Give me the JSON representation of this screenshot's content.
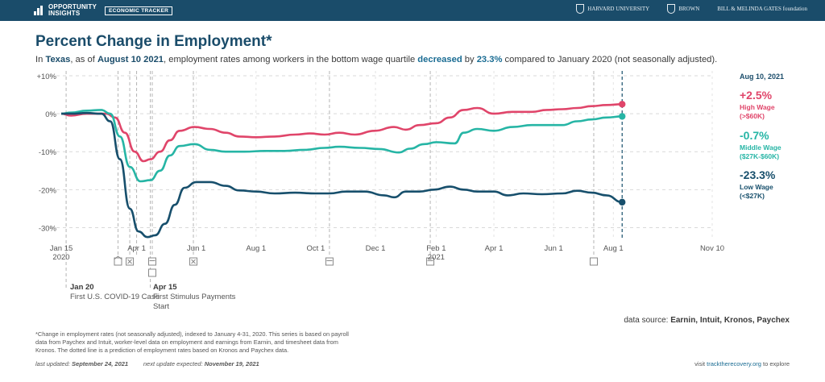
{
  "header": {
    "brand_name_1": "OPPORTUNITY",
    "brand_name_2": "INSIGHTS",
    "brand_tag": "ECONOMIC TRACKER",
    "partners": [
      "HARVARD UNIVERSITY",
      "BROWN",
      "BILL & MELINDA GATES foundation"
    ]
  },
  "title": "Percent Change in Employment*",
  "subtitle": {
    "p1": "In ",
    "state": "Texas",
    "p2": ", as of ",
    "date": "August 10 2021",
    "p3": ", employment rates among workers in the bottom wage quartile ",
    "direction": "decreased",
    "p4": " by ",
    "amount": "23.3%",
    "p5": " compared to January 2020 (not seasonally adjusted)."
  },
  "legend": {
    "date": "Aug 10, 2021",
    "items": [
      {
        "value": "+2.5%",
        "label1": "High Wage",
        "label2": "(>$60K)",
        "color": "#e0456a"
      },
      {
        "value": "-0.7%",
        "label1": "Middle Wage",
        "label2": "($27K-$60K)",
        "color": "#26b5a5"
      },
      {
        "value": "-23.3%",
        "label1": "Low Wage",
        "label2": "(<$27K)",
        "color": "#174f6c"
      }
    ]
  },
  "events": [
    {
      "date": "Jan 20",
      "label": "First U.S. COVID-19 Case"
    },
    {
      "date": "Apr 15",
      "label": "First Stimulus Payments Start"
    }
  ],
  "source": {
    "prefix": "data source: ",
    "names": "Earnin, Intuit, Kronos, Paychex"
  },
  "footnote": "*Change in employment rates (not seasonally adjusted), indexed to January 4-31, 2020. This series is based on payroll data from Paychex and Intuit, worker-level data on employment and earnings from Earnin, and timesheet data from Kronos. The dotted line is a prediction of employment rates based on Kronos and Paychex data.",
  "updated": {
    "label1": "last updated: ",
    "date1": "September 24, 2021",
    "label2": "next update expected: ",
    "date2": "November 19, 2021"
  },
  "explore": {
    "prefix": "visit ",
    "link": "tracktherecovery.org",
    "suffix": " to explore"
  },
  "chart_data": {
    "type": "line",
    "ylim": [
      -35,
      10
    ],
    "yticks": [
      10,
      0,
      -10,
      -20,
      -30
    ],
    "ytick_labels": [
      "+10%",
      "0%",
      "-10%",
      "-20%",
      "-30%"
    ],
    "xlim": [
      "2020-01-15",
      "2021-11-10"
    ],
    "xticks": [
      {
        "date": "2020-01-15",
        "label": "Jan 15",
        "sub": "2020"
      },
      {
        "date": "2020-04-01",
        "label": "Apr 1",
        "sub": ""
      },
      {
        "date": "2020-06-01",
        "label": "Jun 1",
        "sub": ""
      },
      {
        "date": "2020-08-01",
        "label": "Aug 1",
        "sub": ""
      },
      {
        "date": "2020-10-01",
        "label": "Oct 1",
        "sub": ""
      },
      {
        "date": "2020-12-01",
        "label": "Dec 1",
        "sub": ""
      },
      {
        "date": "2021-02-01",
        "label": "Feb 1",
        "sub": "2021"
      },
      {
        "date": "2021-04-01",
        "label": "Apr 1",
        "sub": ""
      },
      {
        "date": "2021-06-01",
        "label": "Jun 1",
        "sub": ""
      },
      {
        "date": "2021-08-01",
        "label": "Aug 1",
        "sub": ""
      },
      {
        "date": "2021-11-10",
        "label": "Nov 10",
        "sub": ""
      }
    ],
    "event_lines": [
      "2020-01-20",
      "2020-03-13",
      "2020-03-25",
      "2020-04-01",
      "2020-04-15",
      "2020-04-17",
      "2020-05-29",
      "2020-10-15",
      "2021-01-26",
      "2021-07-12"
    ],
    "current_date": "2021-08-10",
    "grid": true,
    "series": [
      {
        "name": "High Wage",
        "color": "#e0456a",
        "points": [
          [
            "2020-01-15",
            0
          ],
          [
            "2020-01-25",
            -0.5
          ],
          [
            "2020-02-10",
            0
          ],
          [
            "2020-03-01",
            0
          ],
          [
            "2020-03-10",
            -1
          ],
          [
            "2020-03-20",
            -5
          ],
          [
            "2020-03-30",
            -10
          ],
          [
            "2020-04-08",
            -12.5
          ],
          [
            "2020-04-15",
            -12
          ],
          [
            "2020-04-25",
            -10
          ],
          [
            "2020-05-05",
            -7
          ],
          [
            "2020-05-15",
            -4.5
          ],
          [
            "2020-05-30",
            -3.5
          ],
          [
            "2020-06-15",
            -4
          ],
          [
            "2020-07-01",
            -5
          ],
          [
            "2020-07-15",
            -6
          ],
          [
            "2020-08-01",
            -6.2
          ],
          [
            "2020-08-20",
            -6
          ],
          [
            "2020-09-10",
            -5.5
          ],
          [
            "2020-09-25",
            -5.2
          ],
          [
            "2020-10-10",
            -5.5
          ],
          [
            "2020-10-25",
            -5
          ],
          [
            "2020-11-10",
            -5.5
          ],
          [
            "2020-11-30",
            -4.5
          ],
          [
            "2020-12-20",
            -3.5
          ],
          [
            "2021-01-01",
            -4.2
          ],
          [
            "2021-01-15",
            -3
          ],
          [
            "2021-02-01",
            -2.5
          ],
          [
            "2021-02-15",
            -1
          ],
          [
            "2021-03-01",
            1
          ],
          [
            "2021-03-15",
            1.5
          ],
          [
            "2021-04-01",
            0
          ],
          [
            "2021-04-20",
            0.5
          ],
          [
            "2021-05-10",
            0.5
          ],
          [
            "2021-05-25",
            1
          ],
          [
            "2021-06-10",
            1.2
          ],
          [
            "2021-06-25",
            1.5
          ],
          [
            "2021-07-10",
            2
          ],
          [
            "2021-07-25",
            2.3
          ],
          [
            "2021-08-10",
            2.5
          ]
        ]
      },
      {
        "name": "Middle Wage",
        "color": "#26b5a5",
        "points": [
          [
            "2020-01-15",
            0
          ],
          [
            "2020-01-25",
            0.3
          ],
          [
            "2020-02-10",
            0.8
          ],
          [
            "2020-02-25",
            1
          ],
          [
            "2020-03-05",
            0
          ],
          [
            "2020-03-15",
            -6
          ],
          [
            "2020-03-25",
            -14
          ],
          [
            "2020-04-05",
            -17.8
          ],
          [
            "2020-04-15",
            -17.5
          ],
          [
            "2020-04-25",
            -15
          ],
          [
            "2020-05-05",
            -11
          ],
          [
            "2020-05-15",
            -8.5
          ],
          [
            "2020-05-30",
            -8
          ],
          [
            "2020-06-15",
            -9.5
          ],
          [
            "2020-07-01",
            -10
          ],
          [
            "2020-07-20",
            -10
          ],
          [
            "2020-08-10",
            -9.8
          ],
          [
            "2020-08-30",
            -9.8
          ],
          [
            "2020-09-20",
            -9.5
          ],
          [
            "2020-10-10",
            -9
          ],
          [
            "2020-10-25",
            -8.7
          ],
          [
            "2020-11-15",
            -9
          ],
          [
            "2020-12-05",
            -9.3
          ],
          [
            "2020-12-25",
            -10.2
          ],
          [
            "2021-01-05",
            -9.2
          ],
          [
            "2021-01-20",
            -8
          ],
          [
            "2021-02-01",
            -7.5
          ],
          [
            "2021-02-20",
            -7.8
          ],
          [
            "2021-03-01",
            -5
          ],
          [
            "2021-03-15",
            -4
          ],
          [
            "2021-04-01",
            -4.5
          ],
          [
            "2021-04-20",
            -3.5
          ],
          [
            "2021-05-10",
            -3
          ],
          [
            "2021-05-25",
            -3
          ],
          [
            "2021-06-10",
            -3
          ],
          [
            "2021-06-25",
            -2
          ],
          [
            "2021-07-10",
            -1.5
          ],
          [
            "2021-07-25",
            -1
          ],
          [
            "2021-08-10",
            -0.7
          ]
        ]
      },
      {
        "name": "Low Wage",
        "color": "#174f6c",
        "points": [
          [
            "2020-01-15",
            0
          ],
          [
            "2020-01-25",
            0
          ],
          [
            "2020-02-10",
            0.2
          ],
          [
            "2020-02-25",
            0
          ],
          [
            "2020-03-05",
            -2
          ],
          [
            "2020-03-15",
            -12
          ],
          [
            "2020-03-25",
            -25
          ],
          [
            "2020-04-03",
            -31
          ],
          [
            "2020-04-12",
            -32.5
          ],
          [
            "2020-04-20",
            -32
          ],
          [
            "2020-04-30",
            -29
          ],
          [
            "2020-05-10",
            -24
          ],
          [
            "2020-05-20",
            -19.5
          ],
          [
            "2020-06-01",
            -18
          ],
          [
            "2020-06-15",
            -18
          ],
          [
            "2020-07-01",
            -19
          ],
          [
            "2020-07-15",
            -20.2
          ],
          [
            "2020-08-01",
            -20.5
          ],
          [
            "2020-08-20",
            -21
          ],
          [
            "2020-09-10",
            -20.8
          ],
          [
            "2020-09-30",
            -21
          ],
          [
            "2020-10-15",
            -21
          ],
          [
            "2020-11-01",
            -20.5
          ],
          [
            "2020-11-20",
            -20.5
          ],
          [
            "2020-12-10",
            -21.5
          ],
          [
            "2020-12-20",
            -22
          ],
          [
            "2021-01-01",
            -20.5
          ],
          [
            "2021-01-15",
            -20.5
          ],
          [
            "2021-01-30",
            -20
          ],
          [
            "2021-02-15",
            -19.2
          ],
          [
            "2021-03-01",
            -20
          ],
          [
            "2021-03-15",
            -20.5
          ],
          [
            "2021-04-01",
            -20.5
          ],
          [
            "2021-04-15",
            -21.5
          ],
          [
            "2021-05-01",
            -21
          ],
          [
            "2021-05-20",
            -21.2
          ],
          [
            "2021-06-10",
            -21
          ],
          [
            "2021-06-25",
            -20.3
          ],
          [
            "2021-07-10",
            -20.8
          ],
          [
            "2021-07-25",
            -21.5
          ],
          [
            "2021-08-10",
            -23.3
          ]
        ]
      }
    ]
  }
}
